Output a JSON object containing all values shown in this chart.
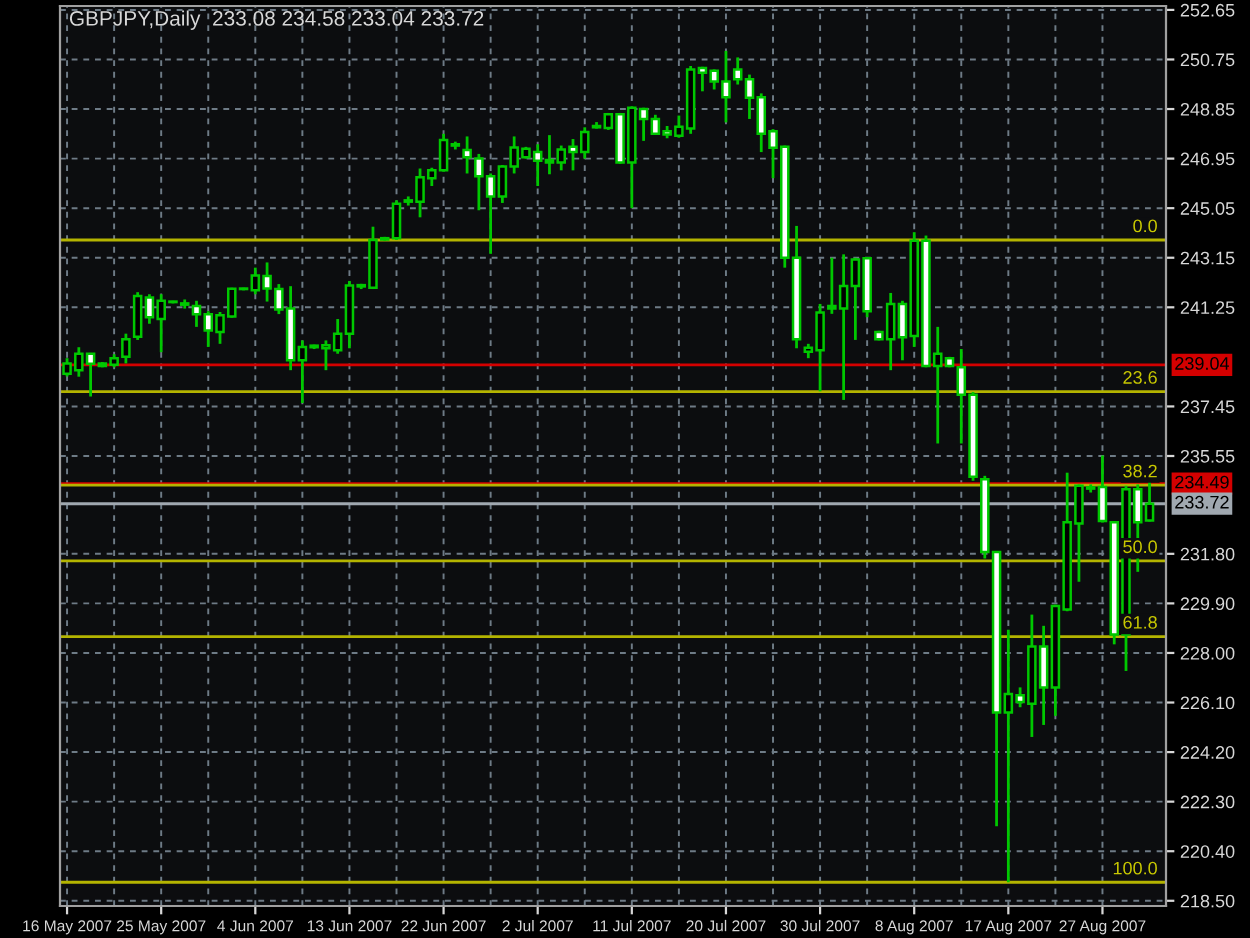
{
  "chart_data": {
    "type": "candlestick",
    "title": "GBPJPY,Daily  233.08 234.58 233.04 233.72",
    "categories": [
      "16 May 2007",
      null,
      null,
      null,
      null,
      null,
      null,
      null,
      "25 May 2007",
      null,
      null,
      null,
      null,
      null,
      null,
      null,
      "4 Jun 2007",
      null,
      null,
      null,
      null,
      null,
      null,
      null,
      "13 Jun 2007",
      null,
      null,
      null,
      null,
      null,
      null,
      null,
      "22 Jun 2007",
      null,
      null,
      null,
      null,
      null,
      null,
      null,
      "2 Jul 2007",
      null,
      null,
      null,
      null,
      null,
      null,
      null,
      "11 Jul 2007",
      null,
      null,
      null,
      null,
      null,
      null,
      null,
      "20 Jul 2007",
      null,
      null,
      null,
      null,
      null,
      null,
      null,
      "30 Jul 2007",
      null,
      null,
      null,
      null,
      null,
      null,
      null,
      "8 Aug 2007",
      null,
      null,
      null,
      null,
      null,
      null,
      null,
      "17 Aug 2007",
      null,
      null,
      null,
      null,
      null,
      null,
      null,
      "27 Aug 2007",
      null,
      null,
      null,
      null
    ],
    "ohlc": [
      [
        238.7,
        239.3,
        238.6,
        239.1
      ],
      [
        238.84,
        239.72,
        238.59,
        239.47
      ],
      [
        239.47,
        239.5,
        237.83,
        239.09
      ],
      [
        239.0,
        239.15,
        238.95,
        239.1
      ],
      [
        239.05,
        239.45,
        238.95,
        239.3
      ],
      [
        239.35,
        240.24,
        239.1,
        240.03
      ],
      [
        240.12,
        241.83,
        240.0,
        241.68
      ],
      [
        241.63,
        241.75,
        240.62,
        240.87
      ],
      [
        240.8,
        241.75,
        239.53,
        241.5
      ],
      [
        241.45,
        241.5,
        241.4,
        241.47
      ],
      [
        241.4,
        241.55,
        241.2,
        241.35
      ],
      [
        241.3,
        241.5,
        240.5,
        240.98
      ],
      [
        240.98,
        241.1,
        239.73,
        240.36
      ],
      [
        240.3,
        241.07,
        239.85,
        240.95
      ],
      [
        240.9,
        242.0,
        240.85,
        241.96
      ],
      [
        241.95,
        242.0,
        241.9,
        241.97
      ],
      [
        241.9,
        242.77,
        241.75,
        242.47
      ],
      [
        242.45,
        242.97,
        241.47,
        241.97
      ],
      [
        241.95,
        242.14,
        240.99,
        241.17
      ],
      [
        241.2,
        242.06,
        238.84,
        239.22
      ],
      [
        239.22,
        239.98,
        237.58,
        239.73
      ],
      [
        239.72,
        239.82,
        239.65,
        239.78
      ],
      [
        239.68,
        239.98,
        238.84,
        239.8
      ],
      [
        239.6,
        240.8,
        239.47,
        240.24
      ],
      [
        240.24,
        242.26,
        239.68,
        242.09
      ],
      [
        242.05,
        242.15,
        241.95,
        242.1
      ],
      [
        242.0,
        244.34,
        241.95,
        243.83
      ],
      [
        243.85,
        243.95,
        243.8,
        243.9
      ],
      [
        243.9,
        245.35,
        243.83,
        245.22
      ],
      [
        245.3,
        245.5,
        245.15,
        245.35
      ],
      [
        245.3,
        246.57,
        244.7,
        246.24
      ],
      [
        246.2,
        246.6,
        245.9,
        246.5
      ],
      [
        246.5,
        247.9,
        246.45,
        247.66
      ],
      [
        247.45,
        247.6,
        247.3,
        247.5
      ],
      [
        247.28,
        247.8,
        246.38,
        247.0
      ],
      [
        246.95,
        247.13,
        244.97,
        246.27
      ],
      [
        246.27,
        246.38,
        243.3,
        245.5
      ],
      [
        245.5,
        246.7,
        245.25,
        246.65
      ],
      [
        246.65,
        247.8,
        246.38,
        247.38
      ],
      [
        247.0,
        247.4,
        246.95,
        247.33
      ],
      [
        247.2,
        247.5,
        245.9,
        246.87
      ],
      [
        246.8,
        247.85,
        246.35,
        246.9
      ],
      [
        246.8,
        247.45,
        246.5,
        247.3
      ],
      [
        247.4,
        247.7,
        246.5,
        247.2
      ],
      [
        247.2,
        248.15,
        246.95,
        247.97
      ],
      [
        248.15,
        248.35,
        248.1,
        248.2
      ],
      [
        248.12,
        248.7,
        248.05,
        248.65
      ],
      [
        248.65,
        248.7,
        246.75,
        246.8
      ],
      [
        246.8,
        248.95,
        245.05,
        248.9
      ],
      [
        248.85,
        248.9,
        247.63,
        248.47
      ],
      [
        248.47,
        248.63,
        247.9,
        247.9
      ],
      [
        248.0,
        248.2,
        247.73,
        247.87
      ],
      [
        247.83,
        248.6,
        247.75,
        248.17
      ],
      [
        248.1,
        250.5,
        247.9,
        250.37
      ],
      [
        250.42,
        250.47,
        249.53,
        250.24
      ],
      [
        250.32,
        250.37,
        249.6,
        249.91
      ],
      [
        249.91,
        251.08,
        248.34,
        249.3
      ],
      [
        250.37,
        250.83,
        249.79,
        249.99
      ],
      [
        249.99,
        250.17,
        248.47,
        249.28
      ],
      [
        249.3,
        249.45,
        247.2,
        247.9
      ],
      [
        248.0,
        248.08,
        246.2,
        247.37
      ],
      [
        247.4,
        247.45,
        242.77,
        243.15
      ],
      [
        243.15,
        244.37,
        239.68,
        240.03
      ],
      [
        239.55,
        239.85,
        239.3,
        239.7
      ],
      [
        239.6,
        241.38,
        238.03,
        241.05
      ],
      [
        241.3,
        243.15,
        241.0,
        241.2
      ],
      [
        241.2,
        243.28,
        237.7,
        242.07
      ],
      [
        242.07,
        243.15,
        240.0,
        243.08
      ],
      [
        243.13,
        243.18,
        240.87,
        241.1
      ],
      [
        240.3,
        240.35,
        239.98,
        240.03
      ],
      [
        240.03,
        241.8,
        238.84,
        241.38
      ],
      [
        241.38,
        241.5,
        239.22,
        240.1
      ],
      [
        240.15,
        244.13,
        239.73,
        243.8
      ],
      [
        243.8,
        244.0,
        238.95,
        239.0
      ],
      [
        239.0,
        240.5,
        236.03,
        239.47
      ],
      [
        239.3,
        239.35,
        238.95,
        239.0
      ],
      [
        238.95,
        239.65,
        236.03,
        237.9
      ],
      [
        237.9,
        238.0,
        234.6,
        234.75
      ],
      [
        234.66,
        234.79,
        231.62,
        231.87
      ],
      [
        231.87,
        231.9,
        221.36,
        225.72
      ],
      [
        225.72,
        228.89,
        219.21,
        226.43
      ],
      [
        226.38,
        226.68,
        225.92,
        226.12
      ],
      [
        226.05,
        229.47,
        224.78,
        228.25
      ],
      [
        228.25,
        229.04,
        225.24,
        226.68
      ],
      [
        226.68,
        229.85,
        225.59,
        229.8
      ],
      [
        229.67,
        234.91,
        229.6,
        233.01
      ],
      [
        232.96,
        234.46,
        230.73,
        234.41
      ],
      [
        234.3,
        234.46,
        234.15,
        234.35
      ],
      [
        234.36,
        235.57,
        233.0,
        233.06
      ],
      [
        233.01,
        233.05,
        228.33,
        228.71
      ],
      [
        228.71,
        234.41,
        227.31,
        234.28
      ],
      [
        234.28,
        234.46,
        231.11,
        233.01
      ],
      [
        233.08,
        234.58,
        233.04,
        233.72
      ]
    ],
    "color": "#00c800",
    "colors": [
      "#000000",
      "#000000",
      "#ffffff",
      "#000000",
      "#000000",
      "#000000",
      "#000000",
      "#ffffff",
      "#000000",
      "#000000",
      "#ffffff",
      "#ffffff",
      "#ffffff",
      "#000000",
      "#000000",
      "#000000",
      "#000000",
      "#ffffff",
      "#ffffff",
      "#ffffff",
      "#000000",
      "#000000",
      "#000000",
      "#000000",
      "#000000",
      "#000000",
      "#000000",
      "#000000",
      "#000000",
      "#000000",
      "#000000",
      "#000000",
      "#000000",
      "#000000",
      "#ffffff",
      "#ffffff",
      "#ffffff",
      "#000000",
      "#000000",
      "#000000",
      "#ffffff",
      "#000000",
      "#000000",
      "#ffffff",
      "#000000",
      "#000000",
      "#000000",
      "#ffffff",
      "#000000",
      "#ffffff",
      "#ffffff",
      "#ffffff",
      "#000000",
      "#000000",
      "#ffffff",
      "#ffffff",
      "#ffffff",
      "#ffffff",
      "#ffffff",
      "#ffffff",
      "#ffffff",
      "#ffffff",
      "#ffffff",
      "#000000",
      "#000000",
      "#ffffff",
      "#000000",
      "#000000",
      "#ffffff",
      "#ffffff",
      "#000000",
      "#ffffff",
      "#000000",
      "#ffffff",
      "#000000",
      "#ffffff",
      "#ffffff",
      "#ffffff",
      "#ffffff",
      "#ffffff",
      "#000000",
      "#ffffff",
      "#000000",
      "#ffffff",
      "#000000",
      "#000000",
      "#000000",
      "#000000",
      "#ffffff",
      "#ffffff",
      "#000000",
      "#ffffff",
      "#000000"
    ],
    "ylim": [
      218.3,
      252.8
    ],
    "yticks": [
      252.65,
      250.75,
      248.85,
      246.95,
      245.05,
      243.15,
      241.25,
      237.45,
      235.55,
      {
        "value": 231.8,
        "label": "231.80"
      },
      {
        "value": 229.9,
        "label": "229.90"
      },
      {
        "value": 228.0,
        "label": "228.00"
      },
      {
        "value": 226.1,
        "label": "226.10"
      },
      {
        "value": 224.2,
        "label": "224.20"
      },
      {
        "value": 222.3,
        "label": "222.30"
      },
      {
        "value": 220.4,
        "label": "220.40"
      },
      {
        "value": 218.5,
        "label": "218.50"
      }
    ],
    "grid": true,
    "ref_lines": [
      {
        "axis": "y",
        "value": 239.04,
        "label": "239.04",
        "color": "#d40000"
      },
      {
        "axis": "y",
        "value": 234.49,
        "label": "234.49",
        "color": "#d40000"
      },
      {
        "axis": "y",
        "value": 233.72,
        "label": "233.72",
        "color": "#a0a8b0"
      },
      {
        "axis": "y",
        "value": 243.83,
        "color": "#b4b400"
      },
      {
        "axis": "y",
        "value": 238.02,
        "color": "#b4b400"
      },
      {
        "axis": "y",
        "value": 234.43,
        "color": "#b4b400"
      },
      {
        "axis": "y",
        "value": 231.53,
        "color": "#b4b400"
      },
      {
        "axis": "y",
        "value": 228.63,
        "color": "#b4b400"
      },
      {
        "axis": "y",
        "value": 219.21,
        "color": "#b4b400"
      }
    ],
    "annotations": [
      {
        "text": "0.0",
        "y": 243.83
      },
      {
        "text": "23.6",
        "y": 238.02
      },
      {
        "text": "38.2",
        "y": 234.43
      },
      {
        "text": "50.0",
        "y": 231.53
      },
      {
        "text": "61.8",
        "y": 228.63
      },
      {
        "text": "100.0",
        "y": 219.21
      }
    ]
  }
}
